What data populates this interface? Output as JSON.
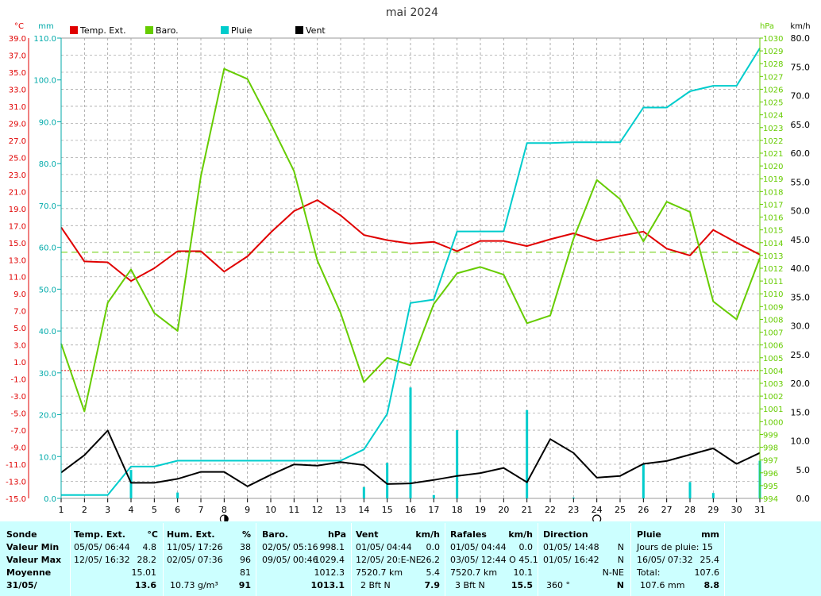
{
  "chart_data": {
    "type": "line",
    "title": "mai 2024",
    "left_units": [
      "°C",
      "mm"
    ],
    "right_units": [
      "hPa",
      "km/h"
    ],
    "x": [
      1,
      2,
      3,
      4,
      5,
      6,
      7,
      8,
      9,
      10,
      11,
      12,
      13,
      14,
      15,
      16,
      17,
      18,
      19,
      20,
      21,
      22,
      23,
      24,
      25,
      26,
      27,
      28,
      29,
      30,
      31
    ],
    "temp_axis": {
      "min": -15,
      "max": 39,
      "ticks": [
        "39.0",
        "37.0",
        "35.0",
        "33.0",
        "31.0",
        "29.0",
        "27.0",
        "25.0",
        "23.0",
        "21.0",
        "19.0",
        "17.0",
        "15.0",
        "13.0",
        "11.0",
        "9.0",
        "7.0",
        "5.0",
        "3.0",
        "1.0",
        "-1.0",
        "-3.0",
        "-5.0",
        "-7.0",
        "-9.0",
        "-11.0",
        "-13.0",
        "-15.0"
      ]
    },
    "rain_axis": {
      "min": 0,
      "max": 110,
      "ticks": [
        "110.0",
        "100.0",
        "90.0",
        "80.0",
        "70.0",
        "60.0",
        "50.0",
        "40.0",
        "30.0",
        "20.0",
        "10.0",
        "0.0"
      ]
    },
    "baro_axis": {
      "min": 994,
      "max": 1030,
      "ticks": [
        "1030",
        "1029",
        "1028",
        "1027",
        "1026",
        "1025",
        "1024",
        "1023",
        "1022",
        "1021",
        "1020",
        "1019",
        "1018",
        "1017",
        "1016",
        "1015",
        "1014",
        "1013",
        "1012",
        "1011",
        "1010",
        "1009",
        "1008",
        "1007",
        "1006",
        "1005",
        "1004",
        "1003",
        "1002",
        "1001",
        "1000",
        "999",
        "998",
        "997",
        "996",
        "995",
        "994"
      ]
    },
    "wind_axis": {
      "min": 0,
      "max": 80,
      "ticks": [
        "80.0",
        "75.0",
        "70.0",
        "65.0",
        "60.0",
        "55.0",
        "50.0",
        "45.0",
        "40.0",
        "35.0",
        "30.0",
        "25.0",
        "20.0",
        "15.0",
        "10.0",
        "5.0",
        "0.0"
      ]
    },
    "series": [
      {
        "name": "Temp. Ext.",
        "color": "#e00000",
        "axis": "temp",
        "values": [
          16.8,
          12.8,
          12.7,
          10.5,
          12.0,
          14.0,
          14.0,
          11.6,
          13.4,
          16.2,
          18.7,
          20.0,
          18.2,
          15.9,
          15.3,
          14.9,
          15.1,
          14.0,
          15.2,
          15.2,
          14.6,
          15.4,
          16.1,
          15.2,
          15.8,
          16.3,
          14.3,
          13.5,
          16.5,
          15.0,
          13.6
        ]
      },
      {
        "name": "Baro.",
        "color": "#66cc00",
        "axis": "baro",
        "values": [
          1006.1,
          1000.8,
          1009.3,
          1011.9,
          1008.5,
          1007.1,
          1019.2,
          1027.6,
          1026.8,
          1023.3,
          1019.6,
          1012.6,
          1008.5,
          1003.1,
          1005.0,
          1004.4,
          1009.2,
          1011.6,
          1012.1,
          1011.5,
          1007.7,
          1008.3,
          1014.3,
          1018.9,
          1017.4,
          1014.1,
          1017.2,
          1016.4,
          1009.4,
          1008.0,
          1012.8
        ]
      },
      {
        "name": "Pluie",
        "color": "#00cccc",
        "axis": "rain",
        "values": [
          0.8,
          0.8,
          0.8,
          7.6,
          7.6,
          9.0,
          9.0,
          9.0,
          9.0,
          9.0,
          9.0,
          9.0,
          9.0,
          11.7,
          20.2,
          46.7,
          47.5,
          63.8,
          63.8,
          63.8,
          84.9,
          84.9,
          85.1,
          85.1,
          85.1,
          93.4,
          93.4,
          97.3,
          98.6,
          98.6,
          107.6
        ]
      },
      {
        "name": "Vent",
        "color": "#000000",
        "axis": "wind",
        "values": [
          4.5,
          7.5,
          11.8,
          2.7,
          2.7,
          3.4,
          4.6,
          4.6,
          2.1,
          4.1,
          5.9,
          5.7,
          6.3,
          5.8,
          2.5,
          2.6,
          3.2,
          3.9,
          4.4,
          5.3,
          2.8,
          10.3,
          7.9,
          3.6,
          3.9,
          6.0,
          6.5,
          7.6,
          8.7,
          6.0,
          7.9
        ]
      },
      {
        "name": "Pluie quotidienne",
        "color": "#00cccc",
        "axis": "rain",
        "values": [
          0,
          0,
          0,
          6.8,
          0,
          1.4,
          0,
          0,
          0,
          0,
          0,
          0,
          0,
          2.7,
          8.5,
          26.5,
          0.8,
          16.3,
          0,
          0,
          21.1,
          0,
          0.2,
          0,
          0,
          8.3,
          0,
          3.9,
          1.3,
          0,
          9.0
        ]
      }
    ],
    "reference_lines": [
      {
        "axis": "baro",
        "value": 1013.25,
        "color": "#66cc00",
        "style": "dashed"
      },
      {
        "axis": "temp",
        "value": 0,
        "color": "#e00000",
        "style": "dotted"
      }
    ],
    "moon_markers": [
      {
        "day": 8,
        "phase": "full"
      },
      {
        "day": 24,
        "phase": "new"
      }
    ],
    "grid": true,
    "legend": "top"
  },
  "colors": {
    "temp": "#e00000",
    "baro": "#66cc00",
    "rain": "#00cccc",
    "wind": "#000000",
    "panel": "#ccffff"
  },
  "table": {
    "labels": {
      "sonde": "Sonde",
      "min": "Valeur Min",
      "max": "Valeur Max",
      "avg": "Moyenne",
      "date": "31/05/"
    },
    "temp": {
      "title": "Temp. Ext.",
      "unit": "°C",
      "min_date": "05/05/  06:44",
      "min_val": "4.8",
      "max_date": "12/05/  16:32",
      "max_val": "28.2",
      "avg": "15.01",
      "current": "13.6"
    },
    "hum": {
      "title": "Hum. Ext.",
      "unit": "%",
      "min_date": "11/05/  17:26",
      "min_val": "38",
      "max_date": "02/05/  07:36",
      "max_val": "96",
      "avg": "81",
      "extra": "10.73 g/m³",
      "current": "91"
    },
    "baro": {
      "title": "Baro.",
      "unit": "hPa",
      "min_date": "02/05/  05:16",
      "min_val": "998.1",
      "max_date": "09/05/  00:46",
      "max_val": "1029.4",
      "avg": "1012.3",
      "current": "1013.1"
    },
    "vent": {
      "title": "Vent",
      "unit": "km/h",
      "min_date": "01/05/  04:44",
      "min_val": "0.0",
      "max_date": "12/05/  20:E-NE",
      "max_val": "26.2",
      "avg_label": "7520.7 km",
      "avg": "5.4",
      "cur_label": "2 Bft N",
      "current": "7.9"
    },
    "rafales": {
      "title": "Rafales",
      "unit": "km/h",
      "min_date": "01/05/  04:44",
      "min_val": "0.0",
      "max_date": "03/05/  12:44  O 45.1",
      "max_val": "",
      "avg_label": "7520.7 km",
      "avg": "10.1",
      "cur_label": "3 Bft N",
      "current": "15.5"
    },
    "direction": {
      "title": "Direction",
      "min_date": "01/05/  14:48",
      "min_val": "N",
      "max_date": "01/05/  16:42",
      "max_val": "N",
      "avg": "N-NE",
      "cur_label": "360 °",
      "current": "N"
    },
    "pluie": {
      "title": "Pluie",
      "unit": "mm",
      "line1": "Jours de pluie: 15",
      "max_date": "16/05/  07:32",
      "max_val": "25.4",
      "total_label": "Total:",
      "total": "107.6",
      "cur_label": "107.6 mm",
      "current": "8.8"
    }
  }
}
